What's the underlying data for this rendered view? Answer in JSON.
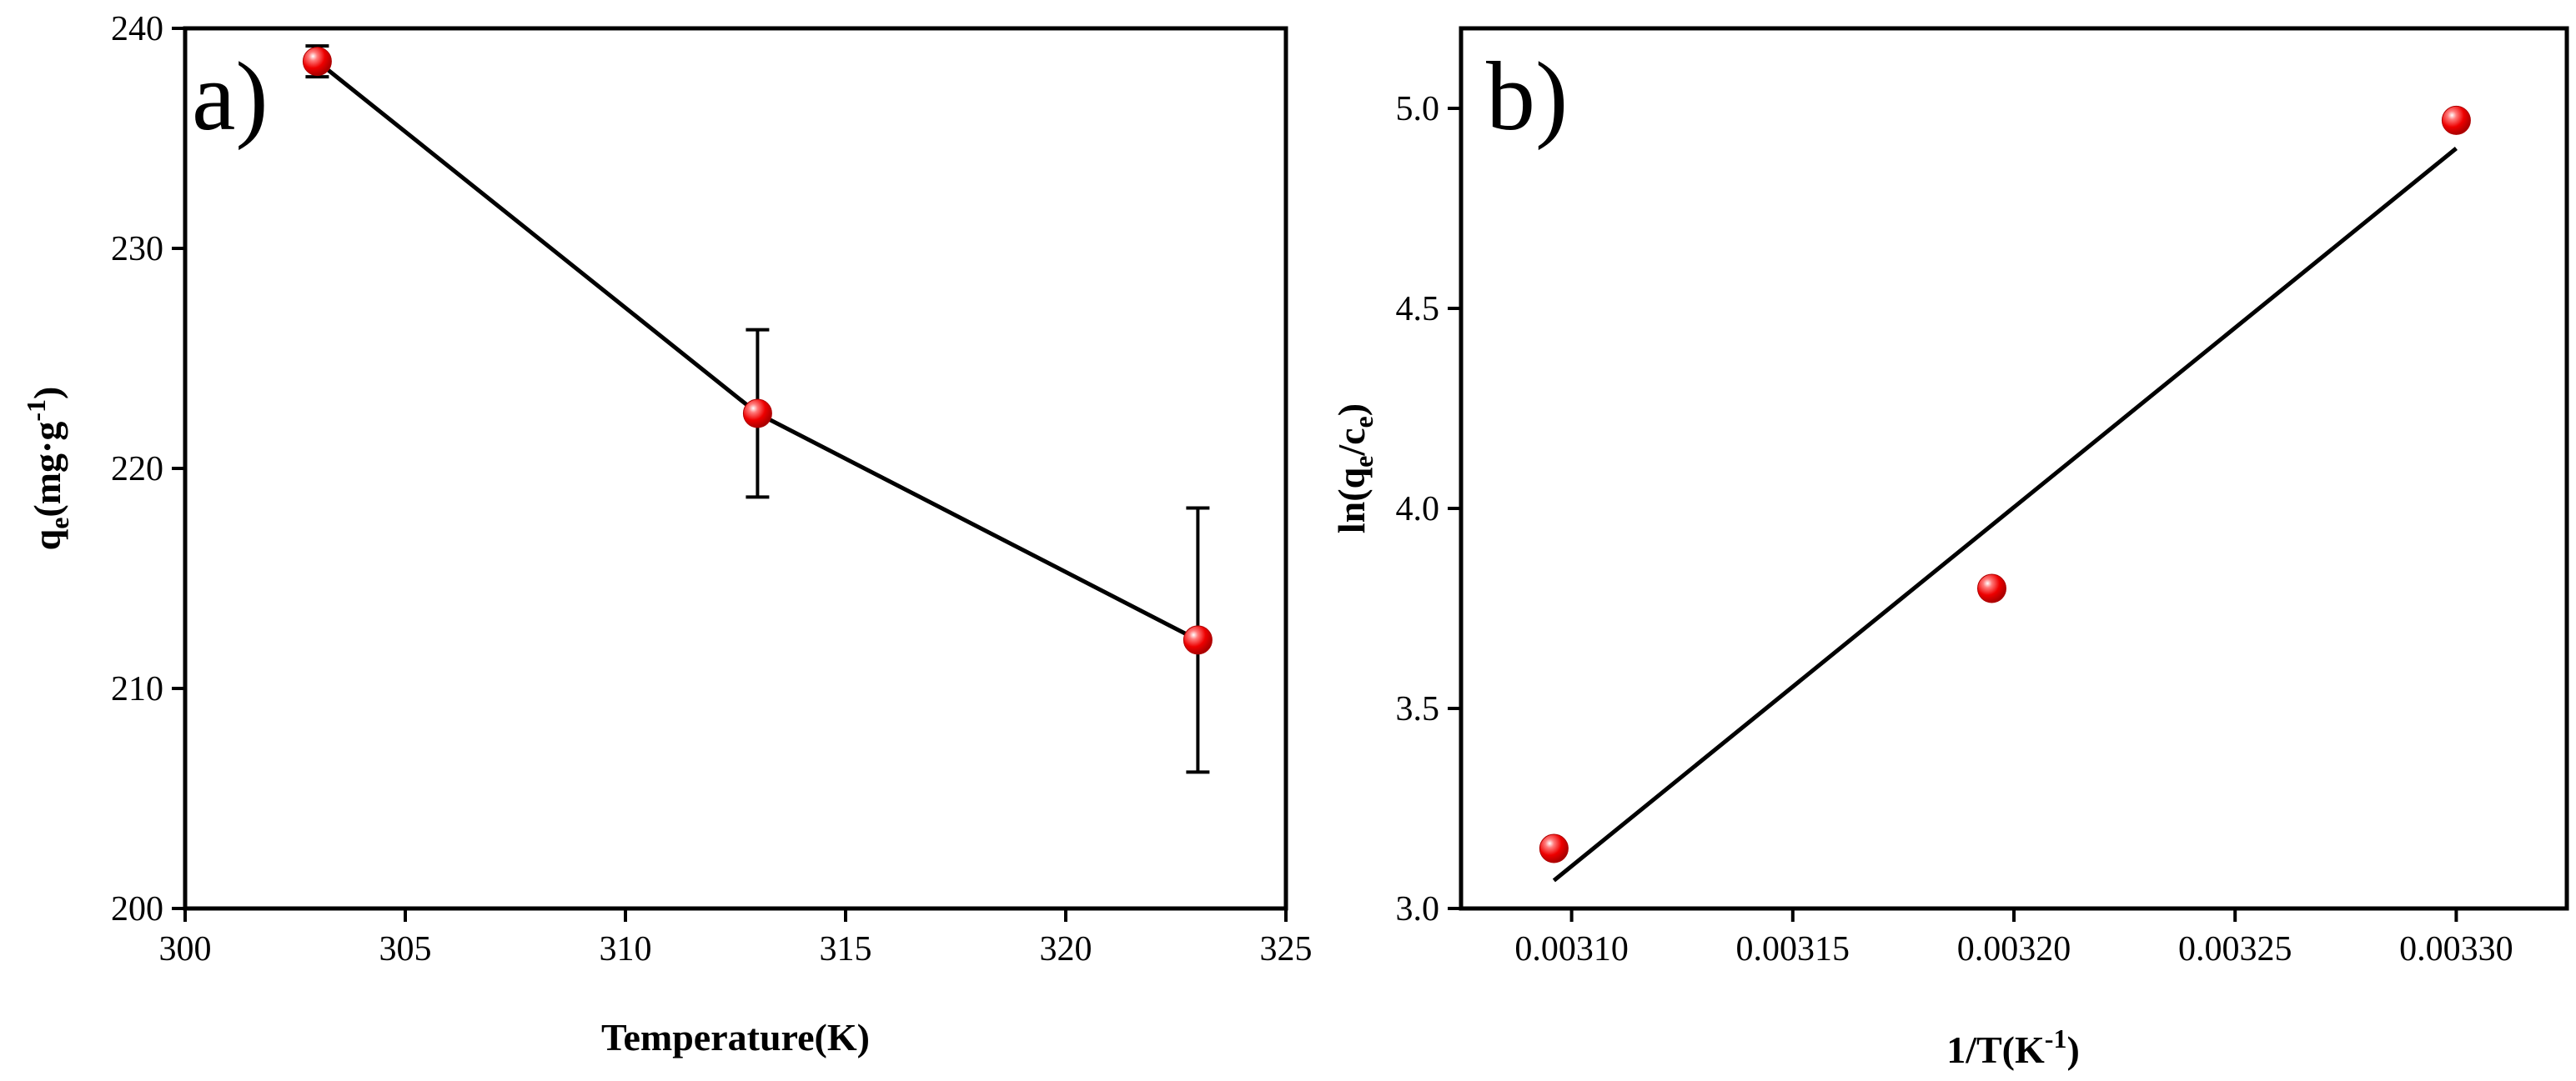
{
  "chart_data": [
    {
      "type": "line",
      "panel_label": "a)",
      "xlabel": "Temperature(K)",
      "ylabel_main": "q",
      "ylabel_sub": "e",
      "ylabel_rest": "(mg·g",
      "ylabel_sup": "-1",
      "ylabel_close": ")",
      "xlim": [
        300,
        325
      ],
      "ylim": [
        200,
        240
      ],
      "xticks": [
        "300",
        "305",
        "310",
        "315",
        "320",
        "325"
      ],
      "yticks": [
        "200",
        "210",
        "220",
        "230",
        "240"
      ],
      "series": [
        {
          "name": "qe",
          "x": [
            303,
            313,
            323
          ],
          "y": [
            238.5,
            222.5,
            212.2
          ],
          "error": [
            0.7,
            3.8,
            6.0
          ]
        }
      ]
    },
    {
      "type": "scatter",
      "panel_label": "b)",
      "xlabel_main": "1/T(K",
      "xlabel_sup": "-1",
      "xlabel_close": ")",
      "ylabel_a": "ln(q",
      "ylabel_sub1": "e",
      "ylabel_b": "/c",
      "ylabel_sub2": "e",
      "ylabel_c": ")",
      "xlim": [
        0.003075,
        0.003325
      ],
      "ylim": [
        3.0,
        5.2
      ],
      "xticks": [
        "0.00310",
        "0.00315",
        "0.00320",
        "0.00325",
        "0.00330"
      ],
      "yticks": [
        "3.0",
        "3.5",
        "4.0",
        "4.5",
        "5.0"
      ],
      "series": [
        {
          "name": "ln(qe/ce)",
          "x": [
            0.003096,
            0.003195,
            0.0033
          ],
          "y": [
            3.15,
            3.8,
            4.97
          ]
        }
      ],
      "fit": {
        "x": [
          0.003096,
          0.0033
        ],
        "y": [
          3.07,
          4.9
        ]
      }
    }
  ],
  "colors": {
    "marker": "#ff1a1a",
    "axis": "#000000"
  }
}
